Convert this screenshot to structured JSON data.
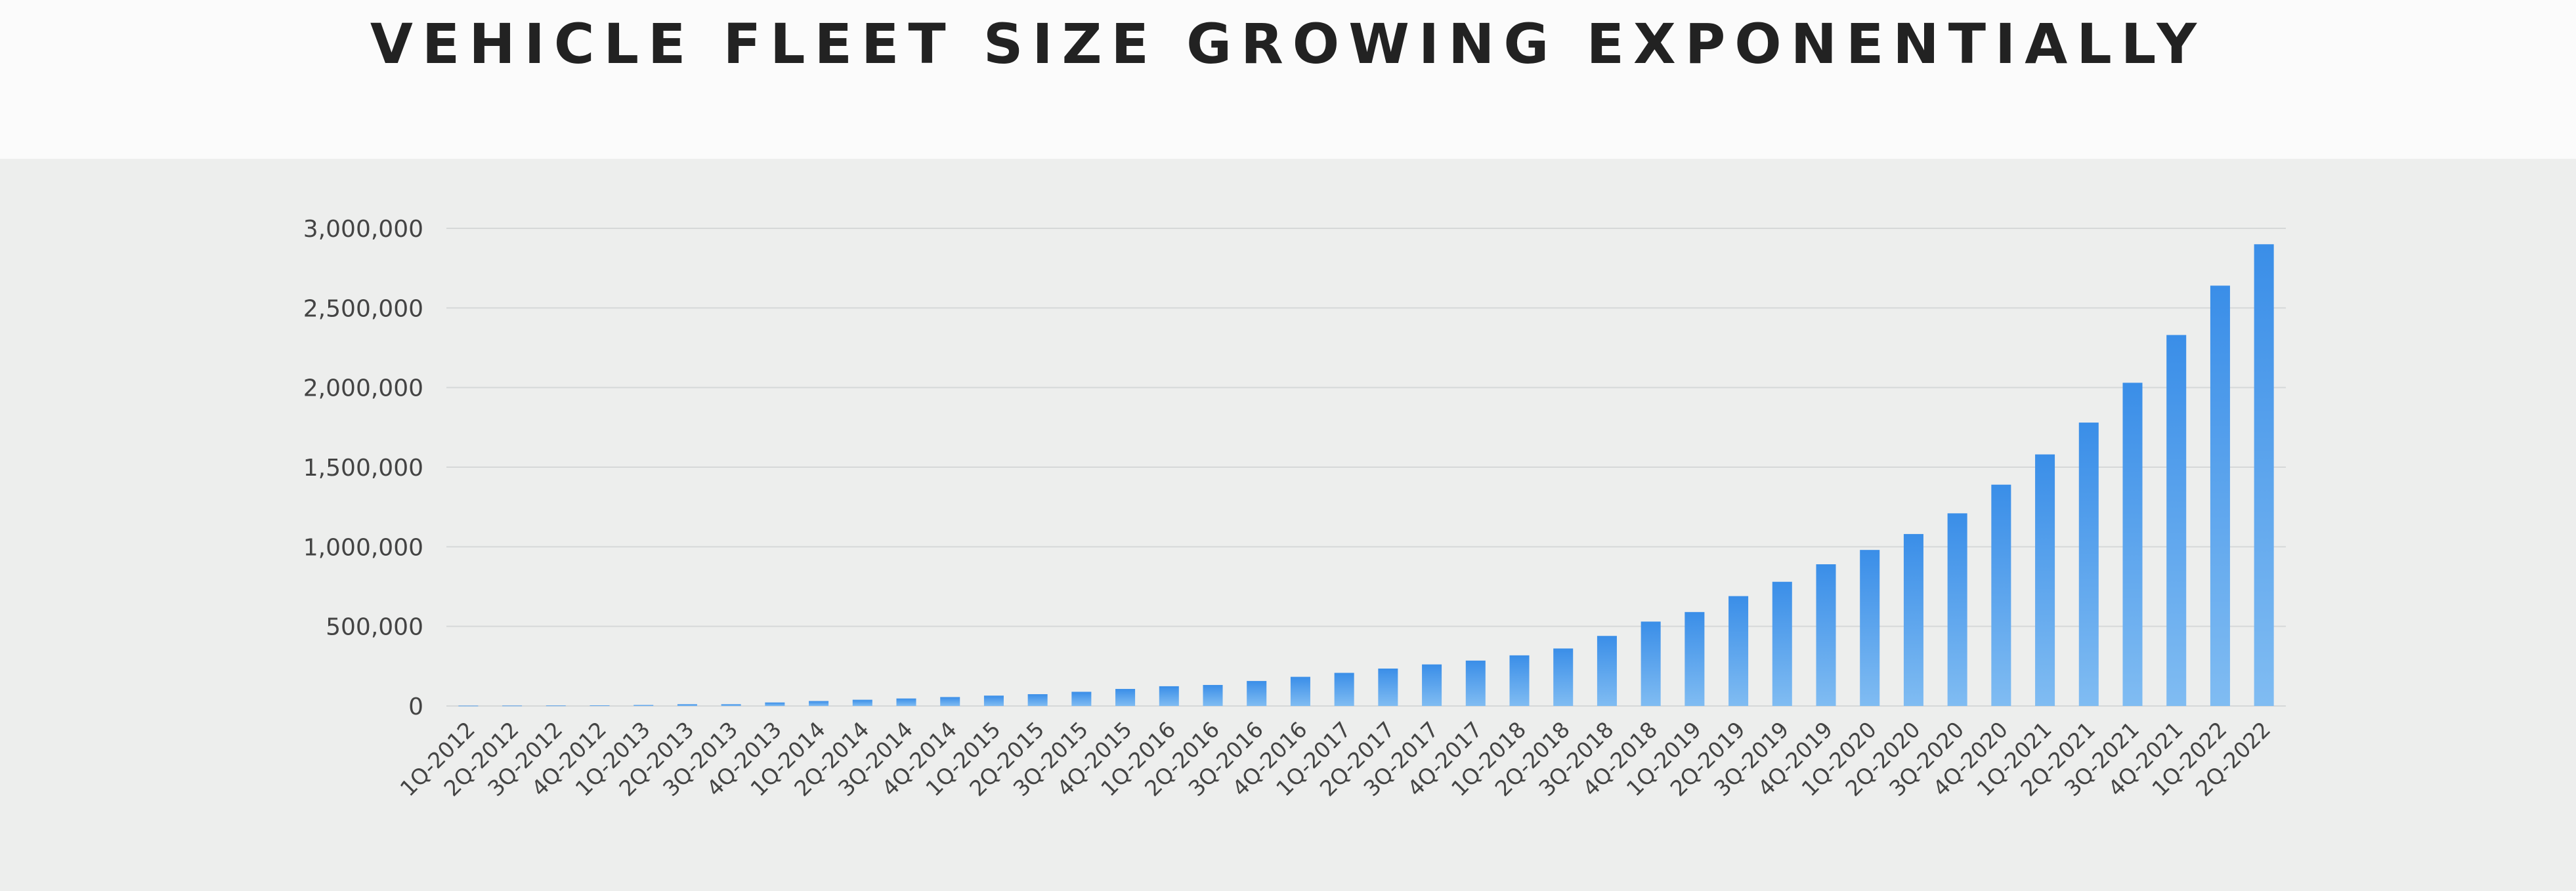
{
  "title": "VEHICLE FLEET SIZE GROWING EXPONENTIALLY",
  "colors": {
    "bar_top": "#3a8ee8",
    "bar_bottom": "#80bcf2",
    "background": "#edeeed",
    "grid": "#d6d8d8"
  },
  "chart_data": {
    "type": "bar",
    "title": "VEHICLE FLEET SIZE GROWING EXPONENTIALLY",
    "xlabel": "",
    "ylabel": "",
    "ylim": [
      0,
      3000000
    ],
    "grid": true,
    "yticks": [
      0,
      500000,
      1000000,
      1500000,
      2000000,
      2500000,
      3000000
    ],
    "ytick_labels": [
      "0",
      "500,000",
      "1,000,000",
      "1,500,000",
      "2,000,000",
      "2,500,000",
      "3,000,000"
    ],
    "categories": [
      "1Q-2012",
      "2Q-2012",
      "3Q-2012",
      "4Q-2012",
      "1Q-2013",
      "2Q-2013",
      "3Q-2013",
      "4Q-2013",
      "1Q-2014",
      "2Q-2014",
      "3Q-2014",
      "4Q-2014",
      "1Q-2015",
      "2Q-2015",
      "3Q-2015",
      "4Q-2015",
      "1Q-2016",
      "2Q-2016",
      "3Q-2016",
      "4Q-2016",
      "1Q-2017",
      "2Q-2017",
      "3Q-2017",
      "4Q-2017",
      "1Q-2018",
      "2Q-2018",
      "3Q-2018",
      "4Q-2018",
      "1Q-2019",
      "2Q-2019",
      "3Q-2019",
      "4Q-2019",
      "1Q-2020",
      "2Q-2020",
      "3Q-2020",
      "4Q-2020",
      "1Q-2021",
      "2Q-2021",
      "3Q-2021",
      "4Q-2021",
      "1Q-2022",
      "2Q-2022"
    ],
    "values": [
      2000,
      2500,
      3000,
      4000,
      6000,
      11000,
      11000,
      22000,
      31000,
      39000,
      47000,
      56000,
      65000,
      74000,
      89000,
      107000,
      124000,
      132000,
      157000,
      183000,
      208000,
      235000,
      261000,
      285000,
      318000,
      361000,
      440000,
      530000,
      590000,
      690000,
      780000,
      890000,
      980000,
      1080000,
      1210000,
      1390000,
      1580000,
      1780000,
      2030000,
      2330000,
      2640000,
      2900000
    ]
  }
}
